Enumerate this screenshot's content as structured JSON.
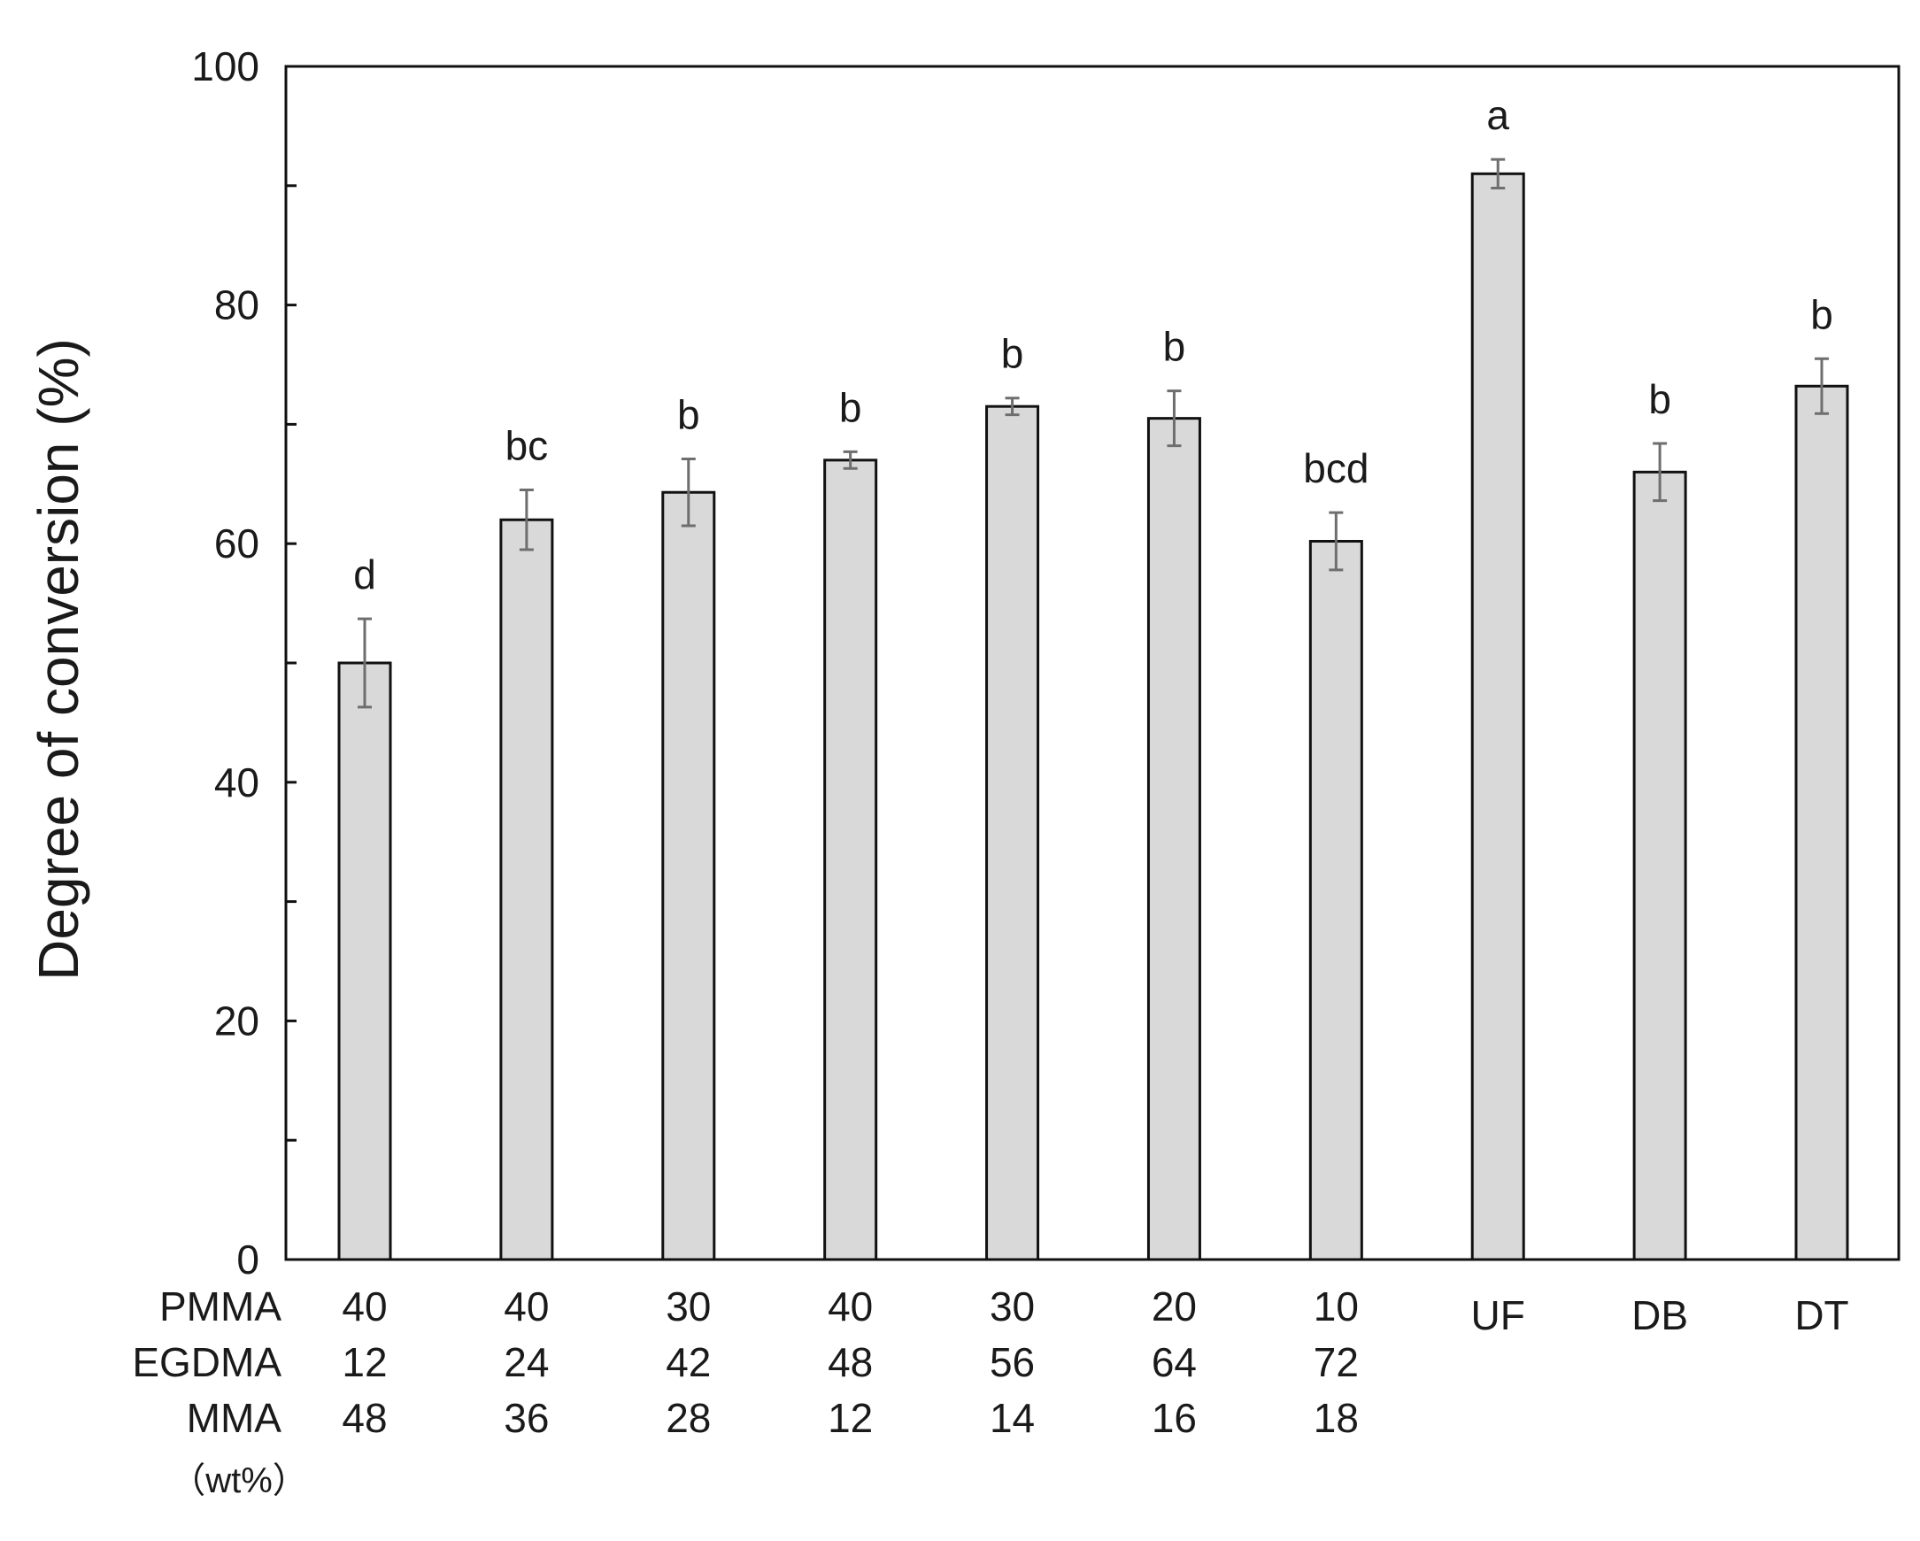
{
  "chart_data": {
    "type": "bar",
    "title": "",
    "xlabel": "",
    "ylabel": "Degree of conversion (%)",
    "ylim": [
      0,
      100
    ],
    "yticks": [
      0,
      20,
      40,
      60,
      80,
      100
    ],
    "grid": false,
    "legend": "none",
    "bar_color": "#d9d9d9",
    "edge_color": "#111111",
    "error_color": "#6e6e6e",
    "categories": [
      "40/12/48",
      "40/24/36",
      "30/42/28",
      "40/48/12",
      "30/56/14",
      "20/64/16",
      "10/72/18",
      "UF",
      "DB",
      "DT"
    ],
    "composition_rows": [
      {
        "name": "PMMA",
        "values": [
          "40",
          "40",
          "30",
          "40",
          "30",
          "20",
          "10",
          "",
          "",
          ""
        ]
      },
      {
        "name": "EGDMA",
        "values": [
          "12",
          "24",
          "42",
          "48",
          "56",
          "64",
          "72",
          "",
          "",
          ""
        ]
      },
      {
        "name": "MMA",
        "values": [
          "48",
          "36",
          "28",
          "12",
          "14",
          "16",
          "18",
          "",
          "",
          ""
        ]
      }
    ],
    "product_labels": [
      "",
      "",
      "",
      "",
      "",
      "",
      "",
      "UF",
      "DB",
      "DT"
    ],
    "unit_label": "（wt%）",
    "values": [
      50.0,
      62.0,
      64.3,
      67.0,
      71.5,
      70.5,
      60.2,
      91.0,
      66.0,
      73.2
    ],
    "errors": [
      3.7,
      2.5,
      2.8,
      0.7,
      0.7,
      2.3,
      2.4,
      1.2,
      2.4,
      2.3
    ],
    "significance": [
      "d",
      "bc",
      "b",
      "b",
      "b",
      "b",
      "bcd",
      "a",
      "b",
      "b"
    ]
  }
}
